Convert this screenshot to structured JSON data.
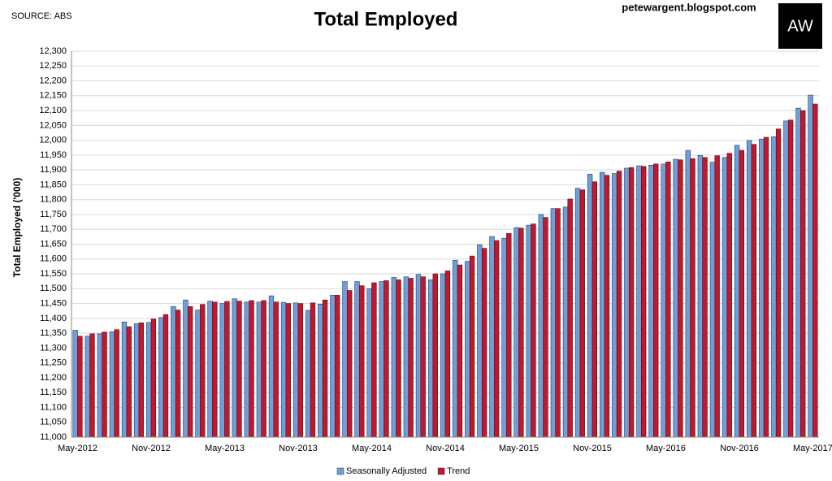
{
  "chart_data": {
    "type": "bar",
    "title": "Total Employed",
    "source": "SOURCE: ABS",
    "site": "petewargent.blogspot.com",
    "logo": "AW",
    "y_label": "Total Employed ('000)",
    "categories": [
      "May-2012",
      null,
      null,
      null,
      null,
      null,
      "Nov-2012",
      null,
      null,
      null,
      null,
      null,
      "May-2013",
      null,
      null,
      null,
      null,
      null,
      "Nov-2013",
      null,
      null,
      null,
      null,
      null,
      "May-2014",
      null,
      null,
      null,
      null,
      null,
      "Nov-2014",
      null,
      null,
      null,
      null,
      null,
      "May-2015",
      null,
      null,
      null,
      null,
      null,
      "Nov-2015",
      null,
      null,
      null,
      null,
      null,
      "May-2016",
      null,
      null,
      null,
      null,
      null,
      "Nov-2016",
      null,
      null,
      null,
      null,
      null,
      "May-2017"
    ],
    "series": [
      {
        "name": "Seasonally Adjusted",
        "color": "#6f9fd6",
        "values": [
          11360,
          11340,
          11348,
          11355,
          11388,
          11382,
          11386,
          11403,
          11440,
          11462,
          11428,
          11458,
          11450,
          11466,
          11455,
          11455,
          11476,
          11454,
          11452,
          11427,
          11448,
          11478,
          11524,
          11524,
          11500,
          11524,
          11538,
          11540,
          11548,
          11530,
          11550,
          11596,
          11592,
          11648,
          11676,
          11670,
          11706,
          11714,
          11750,
          11770,
          11775,
          11838,
          11886,
          11892,
          11888,
          11906,
          11914,
          11916,
          11920,
          11936,
          11966,
          11949,
          11926,
          11942,
          11983,
          11999,
          12004,
          12012,
          12065,
          12108,
          12152
        ]
      },
      {
        "name": "Trend",
        "color": "#c0182d",
        "values": [
          11340,
          11348,
          11354,
          11362,
          11372,
          11385,
          11398,
          11413,
          11428,
          11440,
          11447,
          11455,
          11457,
          11458,
          11460,
          11460,
          11455,
          11450,
          11450,
          11452,
          11462,
          11478,
          11494,
          11510,
          11520,
          11527,
          11530,
          11535,
          11540,
          11550,
          11560,
          11580,
          11610,
          11636,
          11662,
          11686,
          11704,
          11718,
          11740,
          11770,
          11802,
          11833,
          11860,
          11882,
          11896,
          11908,
          11912,
          11920,
          11927,
          11934,
          11938,
          11942,
          11948,
          11956,
          11966,
          11986,
          12010,
          12038,
          12068,
          12100,
          12122
        ]
      }
    ],
    "ylim": [
      11000,
      12300
    ],
    "yticks": [
      {
        "value": 11000,
        "label": "11,000"
      },
      {
        "value": 11050,
        "label": "11,050"
      },
      {
        "value": 11100,
        "label": "11,100"
      },
      {
        "value": 11150,
        "label": "11,150"
      },
      {
        "value": 11200,
        "label": "11,200"
      },
      {
        "value": 11250,
        "label": "11,250"
      },
      {
        "value": 11300,
        "label": "11,300"
      },
      {
        "value": 11350,
        "label": "11,350"
      },
      {
        "value": 11400,
        "label": "11,400"
      },
      {
        "value": 11450,
        "label": "11,450"
      },
      {
        "value": 11500,
        "label": "11,500"
      },
      {
        "value": 11550,
        "label": "11,550"
      },
      {
        "value": 11600,
        "label": "11,600"
      },
      {
        "value": 11650,
        "label": "11,650"
      },
      {
        "value": 11700,
        "label": "11,700"
      },
      {
        "value": 11750,
        "label": "11,750"
      },
      {
        "value": 11800,
        "label": "11,800"
      },
      {
        "value": 11850,
        "label": "11,850"
      },
      {
        "value": 11900,
        "label": "11,900"
      },
      {
        "value": 11950,
        "label": "11,950"
      },
      {
        "value": 12000,
        "label": "12,000"
      },
      {
        "value": 12050,
        "label": "12,050"
      },
      {
        "value": 12100,
        "label": "12,100"
      },
      {
        "value": 12150,
        "label": "12,150"
      },
      {
        "value": 12200,
        "label": "12,200"
      },
      {
        "value": 12250,
        "label": "12,250"
      },
      {
        "value": 12300,
        "label": "12,300"
      }
    ],
    "grid": true,
    "legend": "bottom"
  }
}
